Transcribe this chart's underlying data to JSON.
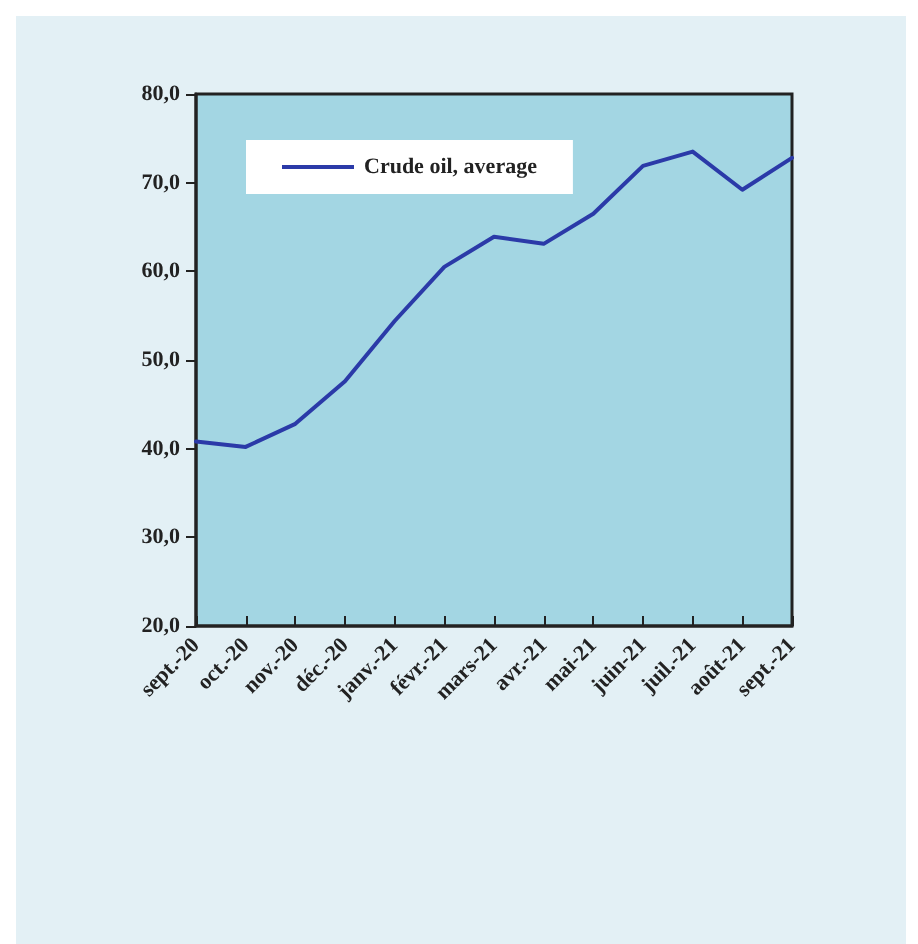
{
  "chart_data": {
    "type": "line",
    "categories": [
      "sept.-20",
      "oct.-20",
      "nov.-20",
      "déc.-20",
      "janv.-21",
      "févr.-21",
      "mars-21",
      "avr.-21",
      "mai-21",
      "juin-21",
      "juil.-21",
      "août-21",
      "sept.-21"
    ],
    "series": [
      {
        "name": "Crude oil, average",
        "color": "#2b3aa8",
        "values": [
          40.8,
          40.2,
          42.8,
          47.6,
          54.4,
          60.5,
          63.9,
          63.1,
          66.5,
          71.9,
          73.5,
          69.2,
          72.8
        ]
      }
    ],
    "ylim": [
      20,
      80
    ],
    "yticks": [
      {
        "value": 20,
        "label": "20,0"
      },
      {
        "value": 30,
        "label": "30,0"
      },
      {
        "value": 40,
        "label": "40,0"
      },
      {
        "value": 50,
        "label": "50,0"
      },
      {
        "value": 60,
        "label": "60,0"
      },
      {
        "value": 70,
        "label": "70,0"
      },
      {
        "value": 80,
        "label": "80,0"
      }
    ],
    "grid": false,
    "legend": "top left",
    "marker": "none",
    "line_style": "solid"
  }
}
